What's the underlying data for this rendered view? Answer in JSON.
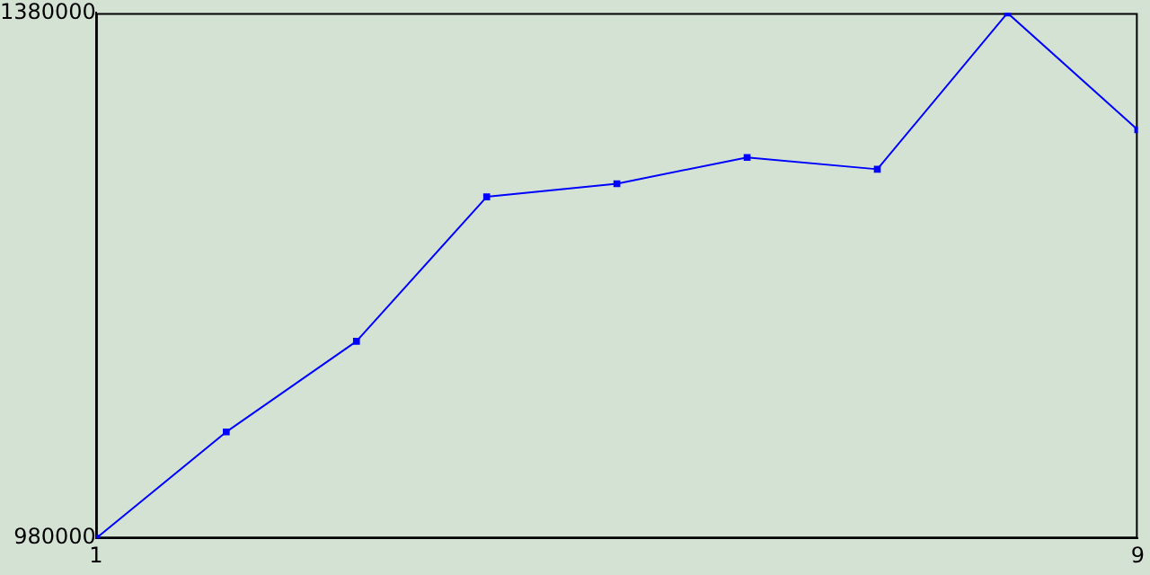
{
  "chart_data": {
    "type": "line",
    "x": [
      1,
      2,
      3,
      4,
      5,
      6,
      7,
      8,
      9
    ],
    "series": [
      {
        "color": "#0000ff",
        "values": [
          980000,
          1061000,
          1130000,
          1240000,
          1250000,
          1270000,
          1261000,
          1380000,
          1291000
        ]
      }
    ],
    "xlim": [
      1,
      9
    ],
    "xticks": [
      1,
      9
    ],
    "ylim": [
      980000,
      1380000
    ],
    "yticks": [
      980000,
      1380000
    ],
    "grid": false,
    "legend": false,
    "marker": "square",
    "line_style": "solid"
  }
}
